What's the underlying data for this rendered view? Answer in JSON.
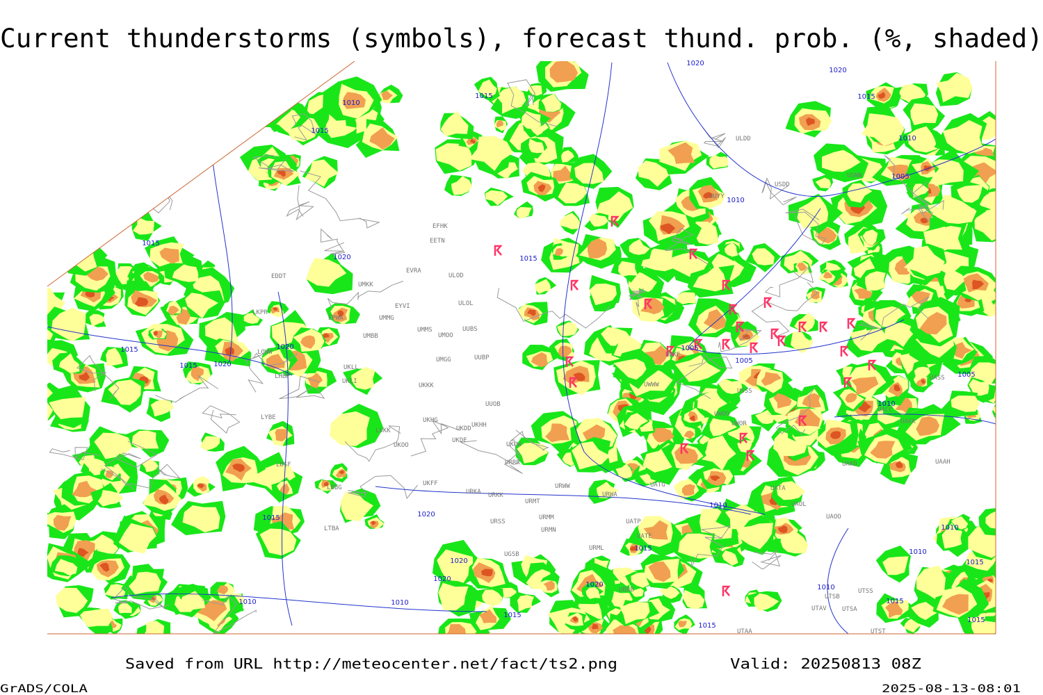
{
  "title": "Current thunderstorms (symbols), forecast thund. prob. (%, shaded)",
  "footer": {
    "source": "Saved from URL http://meteocenter.net/fact/ts2.png",
    "valid": "Valid: 20250813 08Z",
    "software": "GrADS/COLA",
    "timestamp": "2025-08-13-08:01"
  },
  "map": {
    "isobar_labels": [
      "1010",
      "1015",
      "1015",
      "1020",
      "1020",
      "1015",
      "1010",
      "1005",
      "1010",
      "1015",
      "1020",
      "1015",
      "1015",
      "1015",
      "1020",
      "1020",
      "1005",
      "1005",
      "1005",
      "1010",
      "1010",
      "1020",
      "1015",
      "1015",
      "1020",
      "1020",
      "1020",
      "1010",
      "1010",
      "1015",
      "1015",
      "1010",
      "1010",
      "1015",
      "1010",
      "1015",
      "1015"
    ],
    "stations": [
      "ULDD",
      "USDD",
      "USNN",
      "UUYY",
      "EFHK",
      "EETN",
      "EVRA",
      "ULOD",
      "EDDT",
      "UMKK",
      "ULOL",
      "EYVI",
      "EPWA",
      "UMMG",
      "LKPR",
      "UMMS",
      "UMOO",
      "UUBS",
      "UMBB",
      "LOWW",
      "UUBP",
      "UKLL",
      "UKLI",
      "UMGG",
      "LHBP",
      "UKKK",
      "UUOB",
      "LYBE",
      "UKHG",
      "UKDD",
      "UKHH",
      "LUKK",
      "UKOO",
      "UKDE",
      "UKOW",
      "LBSF",
      "URRR",
      "UKFF",
      "LBBG",
      "URKA",
      "URKK",
      "URWW",
      "UATG",
      "URWA",
      "URMT",
      "URSS",
      "URMM",
      "URMN",
      "UATP",
      "UATE",
      "URML",
      "UGSB",
      "LTBA",
      "UAKD",
      "UAAH",
      "UATA",
      "UAOL",
      "UACC",
      "UAKK",
      "UASS",
      "UAOO",
      "UTSB",
      "UTSS",
      "UTAV",
      "UTSA",
      "UTST",
      "UTAA",
      "UBBB",
      "USSS",
      "UWKE",
      "UWWW",
      "UWOO",
      "UWOR"
    ]
  }
}
